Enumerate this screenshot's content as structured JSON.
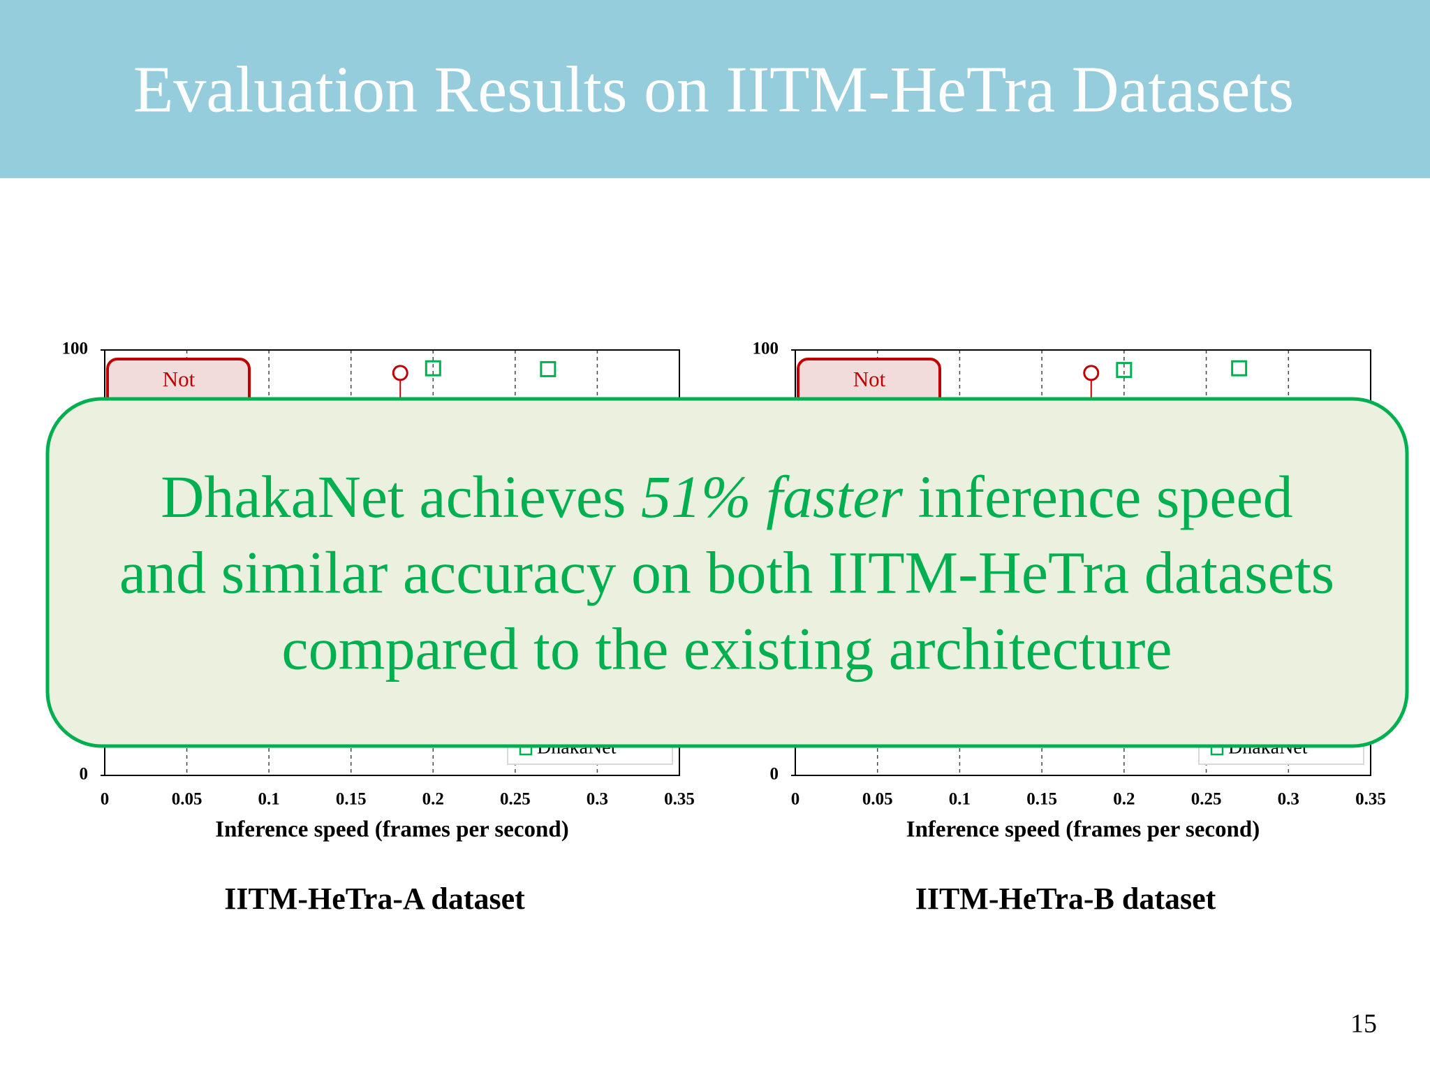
{
  "slide": {
    "title": "Evaluation Results on IITM-HeTra Datasets",
    "page_number": "15"
  },
  "chart_data": [
    {
      "type": "scatter",
      "caption": "IITM-HeTra-A dataset",
      "x_label": "Inference speed (frames per second)",
      "annotation": "Not",
      "xlim": [
        0,
        0.35
      ],
      "xticks": [
        0,
        0.05,
        0.1,
        0.15,
        0.2,
        0.25,
        0.3,
        0.35
      ],
      "ylim": [
        0,
        100
      ],
      "yticks": [
        0,
        100
      ],
      "grid": true,
      "legend": "lower right",
      "series": [
        {
          "color": "#c00000",
          "marker": "circle",
          "x": [
            0.18
          ],
          "values": [
            94.6
          ]
        },
        {
          "name": "DhakaNet",
          "color": "#00b050",
          "marker": "square",
          "x": [
            0.2,
            0.27
          ],
          "values": [
            95.7,
            95.5
          ]
        }
      ]
    },
    {
      "type": "scatter",
      "caption": "IITM-HeTra-B dataset",
      "x_label": "Inference speed (frames per second)",
      "annotation": "Not",
      "xlim": [
        0,
        0.35
      ],
      "xticks": [
        0,
        0.05,
        0.1,
        0.15,
        0.2,
        0.25,
        0.3,
        0.35
      ],
      "ylim": [
        0,
        100
      ],
      "yticks": [
        0,
        100
      ],
      "grid": true,
      "legend": "lower right",
      "series": [
        {
          "color": "#c00000",
          "marker": "circle",
          "x": [
            0.18
          ],
          "values": [
            94.6
          ]
        },
        {
          "name": "DhakaNet",
          "color": "#00b050",
          "marker": "square",
          "x": [
            0.2,
            0.27
          ],
          "values": [
            95.3,
            95.7
          ]
        }
      ]
    }
  ],
  "callout": {
    "line1": [
      "DhakaNet achieves ",
      "51% faster",
      " inference speed"
    ],
    "line2": "and similar accuracy on both IITM-HeTra datasets",
    "line3": "compared to the existing architecture"
  }
}
